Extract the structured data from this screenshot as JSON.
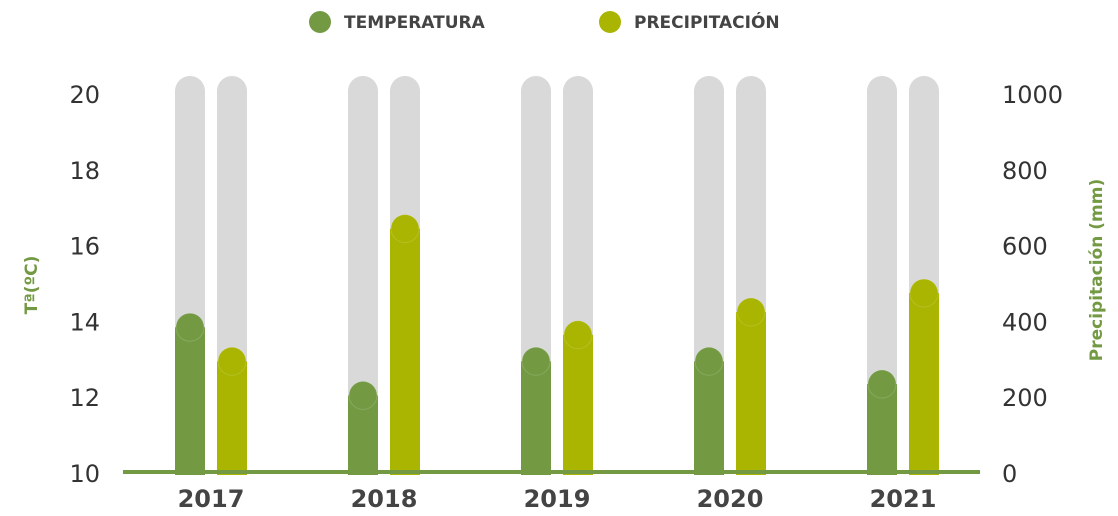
{
  "chart_data": {
    "type": "bar",
    "categories": [
      "2017",
      "2018",
      "2019",
      "2020",
      "2021"
    ],
    "series": [
      {
        "name": "TEMPERATURA",
        "color": "#739a43",
        "values": [
          13.9,
          12.1,
          13.0,
          13.0,
          12.4
        ]
      },
      {
        "name": "PRECIPITACIÓN",
        "color": "#a9b500",
        "axis": "y2",
        "values": [
          300,
          650,
          370,
          430,
          480
        ]
      }
    ],
    "ylabel": "Tª(ºC)",
    "y2label": "Precipitación (mm)",
    "ylim": [
      10,
      20
    ],
    "yticks": [
      10,
      12,
      14,
      16,
      18,
      20
    ],
    "y2lim": [
      0,
      1000
    ],
    "y2ticks": [
      0,
      200,
      400,
      600,
      800,
      1000
    ],
    "track_color": "#d9d9d9",
    "axis_color": "#739a43",
    "legend": "top"
  }
}
